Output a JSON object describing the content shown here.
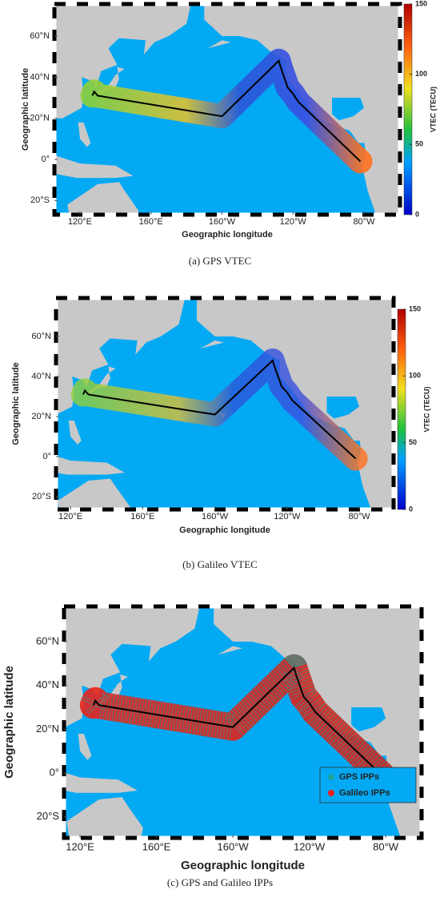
{
  "panels": [
    {
      "caption": "(a) GPS VTEC",
      "xlabel": "Geographic longitude",
      "ylabel": "Geographic latitude",
      "xlim": [
        105.6,
        300.3
      ],
      "ylim": [
        -26.9,
        75.6
      ],
      "xticks": [
        {
          "value": 120,
          "label": "120°E"
        },
        {
          "value": 160,
          "label": "160°E"
        },
        {
          "value": 200,
          "label": "160°W"
        },
        {
          "value": 240,
          "label": "120°W"
        },
        {
          "value": 280,
          "label": "80°W"
        }
      ],
      "yticks": [
        {
          "value": 60,
          "label": "60°N"
        },
        {
          "value": 40,
          "label": "40°N"
        },
        {
          "value": 20,
          "label": "20°N"
        },
        {
          "value": 0,
          "label": "0°"
        },
        {
          "value": -20,
          "label": "20°S"
        }
      ],
      "colorbar": {
        "label": "VTEC (TECU)",
        "clim": [
          0,
          150
        ],
        "ticks": [
          0,
          50,
          100,
          150
        ]
      }
    },
    {
      "caption": "(b) Galileo VTEC",
      "xlabel": "Geographic longitude",
      "ylabel": "Geographic latitude",
      "xlim": [
        112,
        299
      ],
      "ylim": [
        -26.4,
        79.2
      ],
      "xticks": [
        {
          "value": 120,
          "label": "120°E"
        },
        {
          "value": 160,
          "label": "160°E"
        },
        {
          "value": 200,
          "label": "160°W"
        },
        {
          "value": 240,
          "label": "120°W"
        },
        {
          "value": 280,
          "label": "80°W"
        }
      ],
      "yticks": [
        {
          "value": 60,
          "label": "60°N"
        },
        {
          "value": 40,
          "label": "40°N"
        },
        {
          "value": 20,
          "label": "20°N"
        },
        {
          "value": 0,
          "label": "0°"
        },
        {
          "value": -20,
          "label": "20°S"
        }
      ],
      "colorbar": {
        "label": "VTEC (TECU)",
        "clim": [
          0,
          150
        ],
        "ticks": [
          0,
          50,
          100,
          150
        ]
      }
    },
    {
      "caption": "(c) GPS and Galileo IPPs",
      "xlabel": "Geographic longitude",
      "ylabel": "Geographic latitude",
      "xlim": [
        111.6,
        298.8
      ],
      "ylim": [
        -29.6,
        76.1
      ],
      "xticks": [
        {
          "value": 120,
          "label": "120°E"
        },
        {
          "value": 160,
          "label": "160°E"
        },
        {
          "value": 200,
          "label": "160°W"
        },
        {
          "value": 240,
          "label": "120°W"
        },
        {
          "value": 280,
          "label": "80°W"
        }
      ],
      "yticks": [
        {
          "value": 60,
          "label": "60°N"
        },
        {
          "value": 40,
          "label": "40°N"
        },
        {
          "value": 20,
          "label": "20°N"
        },
        {
          "value": 0,
          "label": "0°"
        },
        {
          "value": -20,
          "label": "20°S"
        }
      ],
      "legend": [
        {
          "name": "GPS IPPs",
          "color": "#1aa39a"
        },
        {
          "name": "Galileo IPPs",
          "color": "#e8241c"
        }
      ]
    }
  ]
}
